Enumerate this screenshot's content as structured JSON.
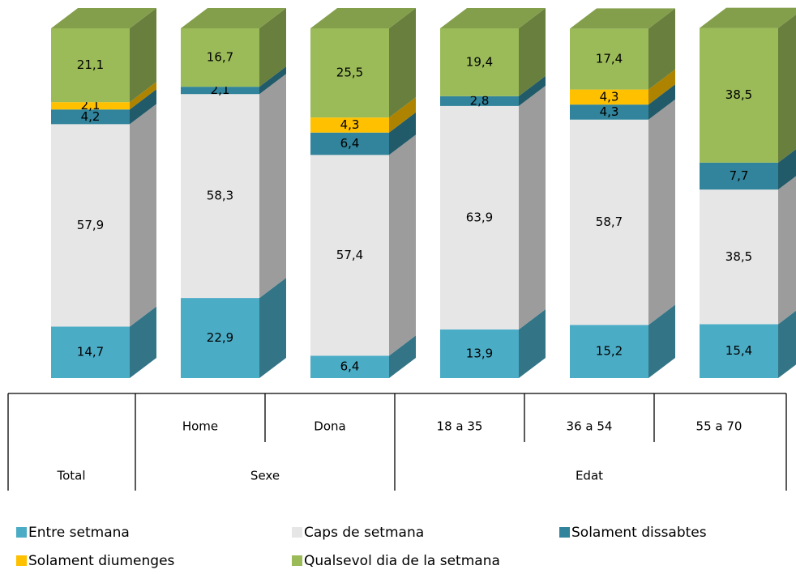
{
  "chart_data": {
    "type": "stacked-bar-3d",
    "categories": [
      "Total",
      "Home",
      "Dona",
      "18 a 35",
      "36 a 54",
      "55 a 70"
    ],
    "group_labels": [
      "Sexe",
      "Edat"
    ],
    "ylim": [
      0,
      100
    ],
    "series": [
      {
        "name": "Entre setmana",
        "color": "#4bacc6",
        "values": [
          14.7,
          22.9,
          6.4,
          13.9,
          15.2,
          15.4
        ],
        "value_labels": [
          "14,7",
          "22,9",
          "6,4",
          "13,9",
          "15,2",
          "15,4"
        ]
      },
      {
        "name": "Caps de setmana",
        "color": "#e6e6e6",
        "values": [
          57.9,
          58.3,
          57.4,
          63.9,
          58.7,
          38.5
        ],
        "value_labels": [
          "57,9",
          "58,3",
          "57,4",
          "63,9",
          "58,7",
          "38,5"
        ]
      },
      {
        "name": "Solament dissabtes",
        "color": "#31849b",
        "values": [
          4.2,
          2.1,
          6.4,
          2.8,
          4.3,
          7.7
        ],
        "value_labels": [
          "4,2",
          "2,1",
          "6,4",
          "2,8",
          "4,3",
          "7,7"
        ]
      },
      {
        "name": "Solament diumenges",
        "color": "#ffc000",
        "values": [
          2.1,
          null,
          4.3,
          null,
          4.3,
          null
        ],
        "value_labels": [
          "2,1",
          null,
          "4,3",
          null,
          "4,3",
          null
        ]
      },
      {
        "name": "Qualsevol dia de la setmana",
        "color": "#9bbb59",
        "values": [
          21.1,
          16.7,
          25.5,
          19.4,
          17.4,
          38.5
        ],
        "value_labels": [
          "21,1",
          "16,7",
          "25,5",
          "19,4",
          "17,4",
          "38,5"
        ]
      }
    ]
  }
}
